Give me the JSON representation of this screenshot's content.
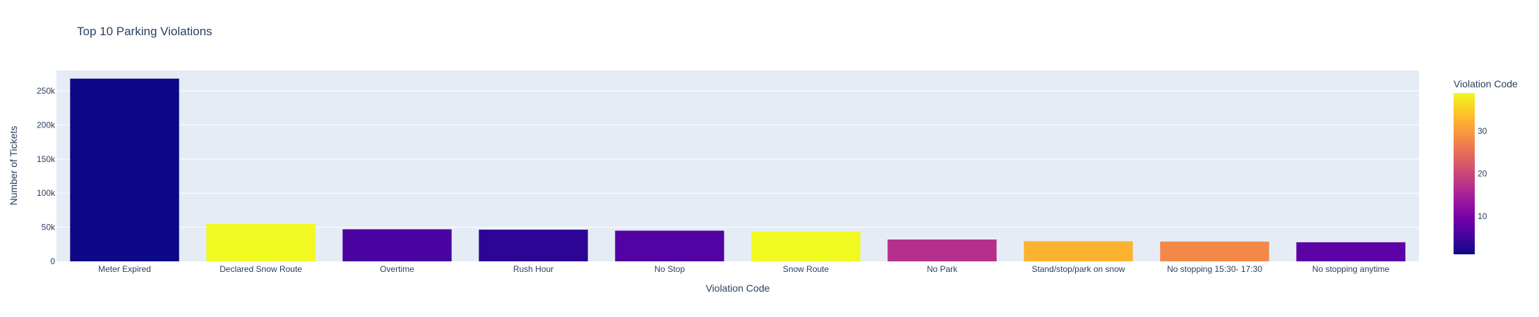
{
  "chart_data": {
    "type": "bar",
    "title": "Top 10 Parking Violations",
    "xlabel": "Violation Code",
    "ylabel": "Number of Tickets",
    "ylim": [
      0,
      280000
    ],
    "y_ticks": [
      {
        "value": 0,
        "label": "0"
      },
      {
        "value": 50000,
        "label": "50k"
      },
      {
        "value": 100000,
        "label": "100k"
      },
      {
        "value": 150000,
        "label": "150k"
      },
      {
        "value": 200000,
        "label": "200k"
      },
      {
        "value": 250000,
        "label": "250k"
      }
    ],
    "categories": [
      "Meter Expired",
      "Declared Snow Route",
      "Overtime",
      "Rush Hour",
      "No Stop",
      "Snow Route",
      "No Park",
      "Stand/stop/park on snow",
      "No stopping 15:30- 17:30",
      "No stopping anytime"
    ],
    "values": [
      268000,
      55000,
      47000,
      46500,
      45000,
      43500,
      32000,
      29500,
      29000,
      28000
    ],
    "colors": [
      "#0d0887",
      "#f0f921",
      "#4903a0",
      "#2c0594",
      "#5302a3",
      "#f0f921",
      "#b52f8c",
      "#fbb32f",
      "#f48849",
      "#5b01a5"
    ],
    "grid": true,
    "plot_bgcolor": "#e5ecf6",
    "colorbar": {
      "title": "Violation Code",
      "range": [
        1,
        39
      ],
      "ticks": [
        {
          "value": 10,
          "label": "10"
        },
        {
          "value": 20,
          "label": "20"
        },
        {
          "value": 30,
          "label": "30"
        }
      ],
      "colorscale": [
        "#0d0887",
        "#46039f",
        "#7201a8",
        "#9c179e",
        "#bd3786",
        "#d8576b",
        "#ed7953",
        "#fb9f3a",
        "#fdca26",
        "#f0f921"
      ]
    }
  }
}
